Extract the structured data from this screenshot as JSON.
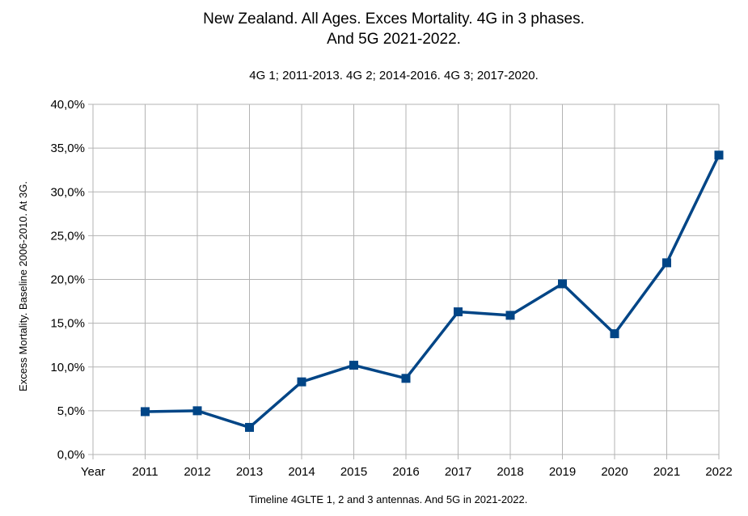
{
  "chart_data": {
    "type": "line",
    "title_lines": [
      "New Zealand. All Ages. Exces Mortality. 4G in 3 phases.",
      "And 5G 2021-2022."
    ],
    "subtitle": "4G 1; 2011-2013. 4G 2; 2014-2016. 4G 3; 2017-2020.",
    "xlabel": "Timeline 4GLTE 1, 2 and 3 antennas. And 5G in 2021-2022.",
    "ylabel": "Excess Mortality. Baseline 2006-2010. At 3G.",
    "categories": [
      "Year",
      "2011",
      "2012",
      "2013",
      "2014",
      "2015",
      "2016",
      "2017",
      "2018",
      "2019",
      "2020",
      "2021",
      "2022"
    ],
    "series": [
      {
        "values": [
          null,
          4.9,
          5.0,
          3.1,
          8.3,
          10.2,
          8.7,
          16.3,
          15.9,
          19.5,
          13.8,
          21.9,
          34.2
        ],
        "color": "#004586"
      }
    ],
    "ylim": [
      0,
      40
    ],
    "yticks": [
      0,
      5,
      10,
      15,
      20,
      25,
      30,
      35,
      40
    ],
    "ytick_labels": [
      "0,0%",
      "5,0%",
      "10,0%",
      "15,0%",
      "20,0%",
      "25,0%",
      "30,0%",
      "35,0%",
      "40,0%"
    ],
    "grid": true,
    "legend": "none"
  }
}
